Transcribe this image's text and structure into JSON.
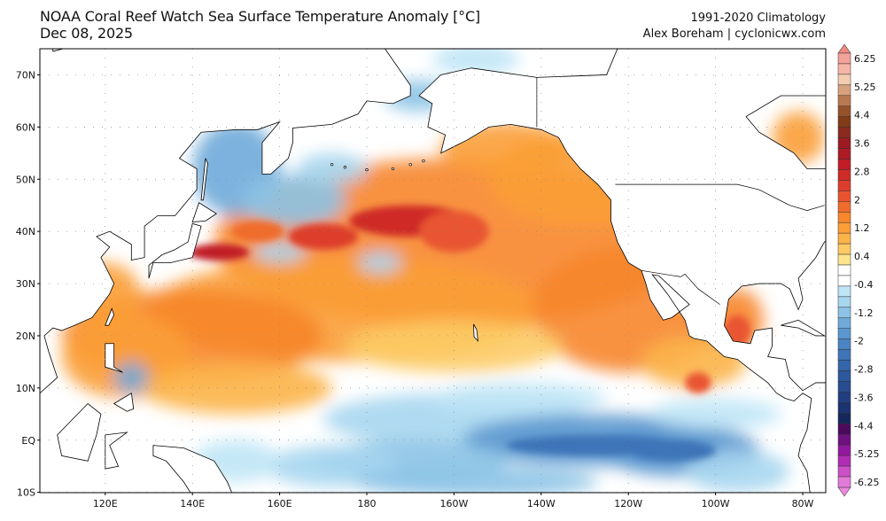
{
  "title": {
    "line1": "NOAA Coral Reef Watch Sea Surface Temperature Anomaly [°C]",
    "line2": "Dec 08, 2025"
  },
  "credits": {
    "climatology": "1991-2020 Climatology",
    "author": "Alex Boreham | cyclonicwx.com"
  },
  "map": {
    "lat_labels": [
      "70N",
      "60N",
      "50N",
      "40N",
      "30N",
      "20N",
      "10N",
      "EQ",
      "10S"
    ],
    "lon_labels": [
      "120E",
      "140E",
      "160E",
      "180",
      "160W",
      "140W",
      "120W",
      "100W",
      "80W"
    ],
    "land_color": "#ffffff",
    "coast_color": "#000000",
    "grid": "dotted"
  },
  "colorbar": {
    "labels": [
      "6.25",
      "5.25",
      "4.4",
      "3.6",
      "2.8",
      "2",
      "1.2",
      "0.4",
      "-0.4",
      "-1.2",
      "-2",
      "-2.8",
      "-3.6",
      "-4.4",
      "-5.25",
      "-6.25"
    ],
    "range": [
      -6.25,
      6.25
    ],
    "colors": [
      "#f4a39a",
      "#f7b5a8",
      "#f2cdb0",
      "#d9a27f",
      "#b87950",
      "#96532b",
      "#823a17",
      "#8b2a1e",
      "#9c1b22",
      "#ad1b25",
      "#c01d26",
      "#cf2b28",
      "#dd3d2c",
      "#e95430",
      "#f06c2c",
      "#f7862c",
      "#fb9e36",
      "#fcb449",
      "#fdcb65",
      "#fde38c",
      "#ffffff",
      "#ffffff",
      "#bfe5f6",
      "#a7d6ef",
      "#8cc3e6",
      "#6faad9",
      "#5a97cf",
      "#4a84c4",
      "#3e74b8",
      "#3565ab",
      "#2d589f",
      "#284c91",
      "#213f80",
      "#1b3370",
      "#15285a",
      "#4b0a5c",
      "#6f1280",
      "#92199f",
      "#b02cb5",
      "#cc4fc8",
      "#e27ad8"
    ],
    "max_arrow_color": "#f08a80",
    "min_arrow_color": "#ee88e0"
  }
}
